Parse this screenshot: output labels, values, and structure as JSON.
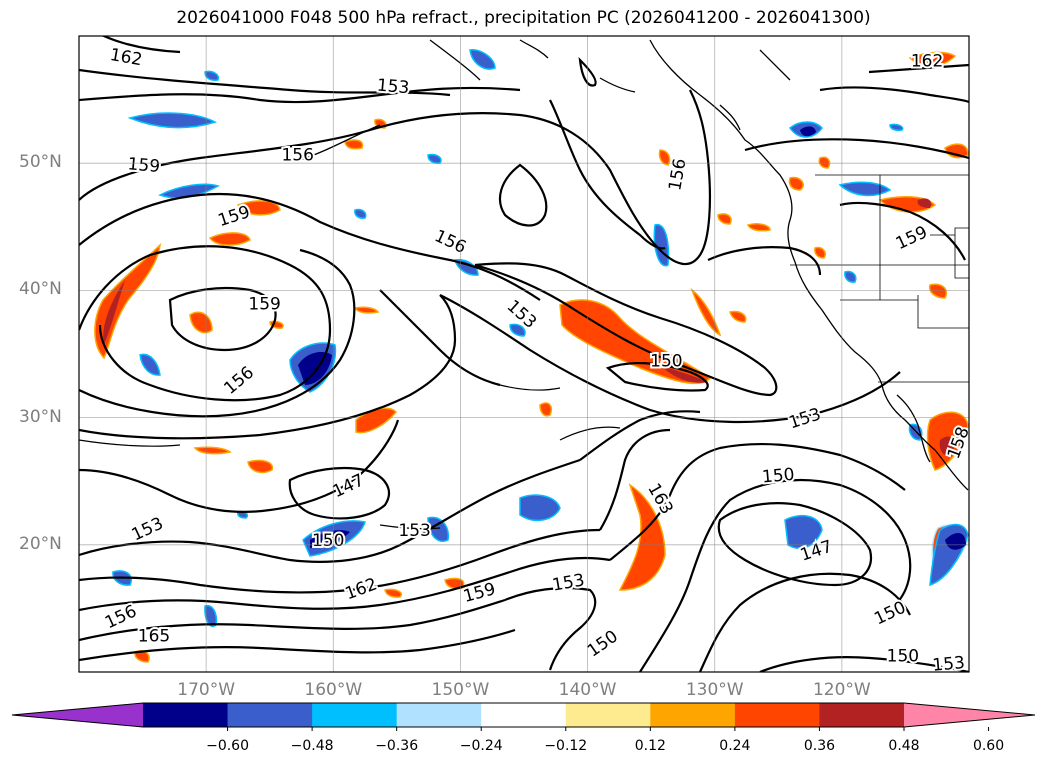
{
  "title": "2026041000 F048 500 hPa refract., precipitation PC (2026041200 - 2026041300)",
  "lat_labels": [
    {
      "text": "50°N",
      "lat": 50
    },
    {
      "text": "40°N",
      "lat": 40
    },
    {
      "text": "30°N",
      "lat": 30
    },
    {
      "text": "20°N",
      "lat": 20
    }
  ],
  "lon_labels": [
    {
      "text": "170°W",
      "lon": -170
    },
    {
      "text": "160°W",
      "lon": -160
    },
    {
      "text": "150°W",
      "lon": -150
    },
    {
      "text": "140°W",
      "lon": -140
    },
    {
      "text": "130°W",
      "lon": -130
    },
    {
      "text": "120°W",
      "lon": -120
    }
  ],
  "map_extent": {
    "lon_min": -180,
    "lon_max": -110,
    "lat_min": 10,
    "lat_max": 60
  },
  "contour_labels": [
    {
      "text": "162",
      "lon": -176.3,
      "lat": 58.3,
      "rot": 10
    },
    {
      "text": "153",
      "lon": -155.3,
      "lat": 56.0,
      "rot": 5
    },
    {
      "text": "156",
      "lon": -162.8,
      "lat": 50.6,
      "rot": 0
    },
    {
      "text": "159",
      "lon": -174.9,
      "lat": 49.8,
      "rot": 5
    },
    {
      "text": "159",
      "lon": -167.8,
      "lat": 45.8,
      "rot": -18
    },
    {
      "text": "156",
      "lon": -150.8,
      "lat": 43.8,
      "rot": 25
    },
    {
      "text": "159",
      "lon": -165.4,
      "lat": 38.9,
      "rot": 0
    },
    {
      "text": "156",
      "lon": -167.4,
      "lat": 32.9,
      "rot": -40
    },
    {
      "text": "153",
      "lon": -145.2,
      "lat": 38.1,
      "rot": 42
    },
    {
      "text": "150",
      "lon": -133.8,
      "lat": 34.4,
      "rot": 0
    },
    {
      "text": "156",
      "lon": -132.9,
      "lat": 49.1,
      "rot": -80
    },
    {
      "text": "162",
      "lon": -113.3,
      "lat": 58.0,
      "rot": 0
    },
    {
      "text": "159",
      "lon": -114.5,
      "lat": 44.1,
      "rot": -25
    },
    {
      "text": "153",
      "lon": -122.9,
      "lat": 29.9,
      "rot": -18
    },
    {
      "text": "150",
      "lon": -125.0,
      "lat": 25.4,
      "rot": -5
    },
    {
      "text": "147",
      "lon": -158.8,
      "lat": 24.6,
      "rot": -25
    },
    {
      "text": "153",
      "lon": -174.6,
      "lat": 21.2,
      "rot": -25
    },
    {
      "text": "150",
      "lon": -160.4,
      "lat": 20.3,
      "rot": 0
    },
    {
      "text": "153",
      "lon": -153.6,
      "lat": 21.1,
      "rot": 0
    },
    {
      "text": "162",
      "lon": -157.8,
      "lat": 16.5,
      "rot": -20
    },
    {
      "text": "159",
      "lon": -148.5,
      "lat": 16.2,
      "rot": -15
    },
    {
      "text": "153",
      "lon": -141.5,
      "lat": 17.0,
      "rot": -10
    },
    {
      "text": "163",
      "lon": -134.3,
      "lat": 23.6,
      "rot": 60
    },
    {
      "text": "147",
      "lon": -122.0,
      "lat": 19.5,
      "rot": -18
    },
    {
      "text": "150",
      "lon": -138.8,
      "lat": 12.2,
      "rot": -35
    },
    {
      "text": "150",
      "lon": -116.2,
      "lat": 14.6,
      "rot": -25
    },
    {
      "text": "150",
      "lon": -115.2,
      "lat": 11.2,
      "rot": 0
    },
    {
      "text": "153",
      "lon": -111.6,
      "lat": 10.6,
      "rot": -5
    },
    {
      "text": "156",
      "lon": -176.7,
      "lat": 14.3,
      "rot": -25
    },
    {
      "text": "165",
      "lon": -174.1,
      "lat": 12.8,
      "rot": 0
    },
    {
      "text": "158",
      "lon": -110.8,
      "lat": 28.0,
      "rot": -70
    }
  ],
  "colorbar": {
    "tick_labels": [
      "−0.60",
      "−0.48",
      "−0.36",
      "−0.24",
      "−0.12",
      "0.12",
      "0.24",
      "0.36",
      "0.48",
      "0.60"
    ],
    "colors": [
      "#9932cc",
      "#00008b",
      "#3a5fcd",
      "#00bfff",
      "#b0e2ff",
      "#ffffff",
      "#ffeb8f",
      "#ffa500",
      "#ff4500",
      "#b22222",
      "#ff85a8"
    ]
  }
}
